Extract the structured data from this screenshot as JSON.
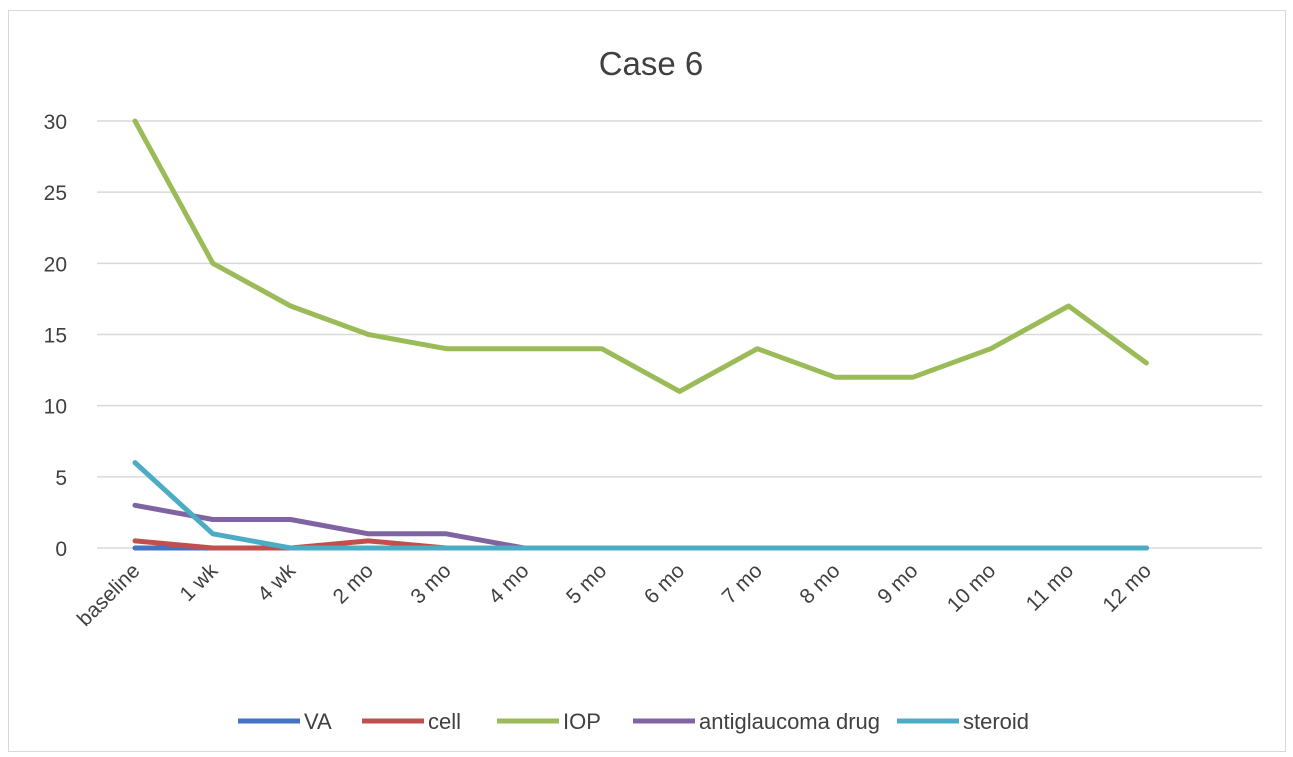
{
  "chart_data": {
    "type": "line",
    "title": "Case 6",
    "xlabel": "",
    "ylabel": "",
    "ylim": [
      0,
      30
    ],
    "yticks": [
      0,
      5,
      10,
      15,
      20,
      25,
      30
    ],
    "grid": true,
    "legend_position": "bottom",
    "categories": [
      "baseline",
      "1 wk",
      "4 wk",
      "2 mo",
      "3 mo",
      "4 mo",
      "5 mo",
      "6 mo",
      "7 mo",
      "8 mo",
      "9 mo",
      "10 mo",
      "11 mo",
      "12 mo"
    ],
    "series": [
      {
        "name": "VA",
        "color": "#4472C4",
        "values": [
          0,
          0,
          0,
          0,
          0,
          0,
          0,
          0,
          0,
          0,
          0,
          0,
          0,
          0
        ]
      },
      {
        "name": "cell",
        "color": "#C0504D",
        "values": [
          0.5,
          0,
          0,
          0.5,
          0,
          0,
          0,
          0,
          0,
          0,
          0,
          0,
          0,
          0
        ]
      },
      {
        "name": "IOP",
        "color": "#9BBB59",
        "values": [
          30,
          20,
          17,
          15,
          14,
          14,
          14,
          11,
          14,
          12,
          12,
          14,
          17,
          13
        ]
      },
      {
        "name": "antiglaucoma drug",
        "color": "#8064A2",
        "values": [
          3,
          2,
          2,
          1,
          1,
          0,
          0,
          0,
          0,
          0,
          0,
          0,
          0,
          0
        ]
      },
      {
        "name": "steroid",
        "color": "#4BACC6",
        "values": [
          6,
          1,
          0,
          0,
          0,
          0,
          0,
          0,
          0,
          0,
          0,
          0,
          0,
          0
        ]
      }
    ]
  }
}
